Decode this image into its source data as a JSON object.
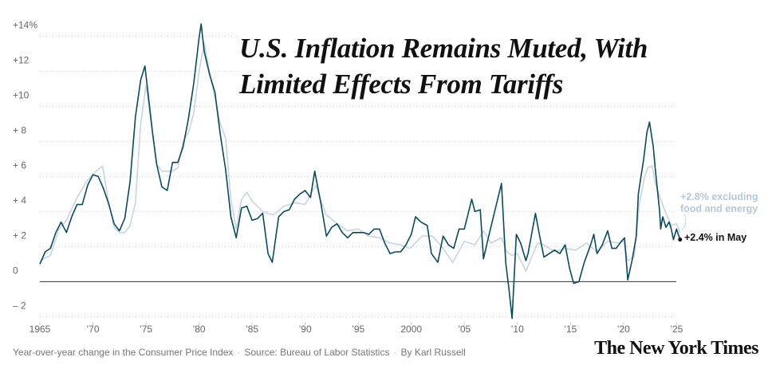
{
  "chart_data": {
    "type": "line",
    "title": "U.S. Inflation Remains Muted, With Limited Effects From Tariffs",
    "note": "Year-over-year change in the Consumer Price Index",
    "source": "Source: Bureau of Labor Statistics",
    "byline": "By Karl Russell",
    "logo": "The New York Times",
    "xlim": [
      1965,
      2025.5
    ],
    "xticks": [
      {
        "value": 1965,
        "label": "1965"
      },
      {
        "value": 1970,
        "label": "’70"
      },
      {
        "value": 1975,
        "label": "’75"
      },
      {
        "value": 1980,
        "label": "’80"
      },
      {
        "value": 1985,
        "label": "’85"
      },
      {
        "value": 1990,
        "label": "’90"
      },
      {
        "value": 1995,
        "label": "’95"
      },
      {
        "value": 2000,
        "label": "2000"
      },
      {
        "value": 2005,
        "label": "’05"
      },
      {
        "value": 2010,
        "label": "’10"
      },
      {
        "value": 2015,
        "label": "’15"
      },
      {
        "value": 2020,
        "label": "’20"
      },
      {
        "value": 2025,
        "label": "’25"
      }
    ],
    "ylim": [
      -2.3,
      14.7
    ],
    "yticks": [
      {
        "value": -2,
        "label": "– 2"
      },
      0,
      {
        "value": 2,
        "label": "+ 2"
      },
      {
        "value": 4,
        "label": "+ 4"
      },
      {
        "value": 6,
        "label": "+ 6"
      },
      {
        "value": 8,
        "label": "+ 8"
      },
      {
        "value": 10,
        "label": "+10"
      },
      {
        "value": 12,
        "label": "+12"
      },
      {
        "value": 14,
        "label": "+14%"
      }
    ],
    "grid": true,
    "series": [
      {
        "name": "+2.8% excluding food and energy",
        "color": "#c9d4df",
        "x": [
          1965,
          1966,
          1966.8,
          1967.5,
          1968.5,
          1969.5,
          1970.3,
          1970.9,
          1971.5,
          1972,
          1972.5,
          1973,
          1973.5,
          1974,
          1974.5,
          1975,
          1975.5,
          1976,
          1976.5,
          1977,
          1977.5,
          1978,
          1978.5,
          1979,
          1979.5,
          1980,
          1980.5,
          1980.9,
          1981.5,
          1982,
          1982.5,
          1983,
          1983.5,
          1984,
          1984.5,
          1985,
          1986,
          1987,
          1988,
          1989,
          1990,
          1991,
          1991.5,
          1992,
          1993,
          1994,
          1995,
          1996,
          1997,
          1998,
          1999,
          1999.9,
          2001,
          2002,
          2003,
          2003.9,
          2005,
          2006,
          2006.8,
          2007.5,
          2008.5,
          2009,
          2009.5,
          2010,
          2010.8,
          2011.9,
          2012.5,
          2013.5,
          2014.5,
          2015.5,
          2016.5,
          2017.5,
          2018.5,
          2019.5,
          2020,
          2020.4,
          2021,
          2021.5,
          2022,
          2022.3,
          2022.7,
          2023,
          2023.5,
          2024,
          2024.5,
          2025,
          2025.33
        ],
        "values": [
          1.2,
          1.5,
          3.0,
          3.5,
          4.8,
          5.8,
          6.3,
          6.6,
          4.5,
          3.1,
          2.8,
          2.8,
          3.2,
          4.5,
          9.0,
          11.2,
          9.0,
          6.7,
          6.3,
          6.3,
          6.3,
          6.5,
          8.0,
          8.5,
          9.6,
          12.0,
          13.6,
          12.2,
          10.5,
          9.0,
          8.2,
          4.7,
          3.0,
          4.7,
          5.1,
          4.6,
          4.0,
          3.8,
          4.3,
          4.5,
          4.4,
          5.5,
          4.6,
          3.8,
          3.3,
          2.9,
          3.0,
          2.6,
          2.5,
          2.2,
          2.1,
          1.9,
          2.6,
          2.6,
          1.9,
          1.1,
          2.3,
          2.1,
          2.9,
          2.2,
          2.5,
          1.7,
          1.5,
          1.6,
          0.6,
          2.2,
          2.1,
          1.7,
          1.9,
          1.8,
          2.2,
          1.7,
          2.3,
          2.2,
          2.3,
          1.2,
          1.4,
          4.5,
          6.0,
          6.5,
          6.6,
          5.6,
          4.7,
          3.9,
          3.2,
          3.3,
          2.8
        ]
      },
      {
        "name": "+2.4% in May",
        "color": "#0b4a5e",
        "x": [
          1965,
          1965.5,
          1966,
          1966.5,
          1967,
          1967.5,
          1968,
          1968.5,
          1969,
          1969.5,
          1970,
          1970.5,
          1971,
          1971.5,
          1972,
          1972.5,
          1973,
          1973.5,
          1974,
          1974.5,
          1974.9,
          1975.3,
          1975.6,
          1976,
          1976.5,
          1977,
          1977.5,
          1978,
          1978.5,
          1979,
          1979.5,
          1980,
          1980.2,
          1980.5,
          1981,
          1981.5,
          1982,
          1982.5,
          1983,
          1983.5,
          1984,
          1984.5,
          1985,
          1985.5,
          1986,
          1986.5,
          1986.9,
          1987.5,
          1988,
          1988.5,
          1989,
          1989.5,
          1990,
          1990.5,
          1990.9,
          1991.5,
          1992,
          1992.5,
          1993,
          1993.5,
          1994,
          1994.5,
          1995,
          1995.5,
          1996,
          1996.5,
          1997,
          1997.5,
          1998,
          1998.5,
          1999,
          1999.5,
          2000,
          2000.4,
          2000.9,
          2001.5,
          2001.9,
          2002.5,
          2003,
          2003.5,
          2004,
          2004.5,
          2005,
          2005.7,
          2006,
          2006.5,
          2006.8,
          2007.3,
          2007.9,
          2008.5,
          2008.9,
          2009.2,
          2009.5,
          2009.9,
          2010.3,
          2010.8,
          2011,
          2011.7,
          2012,
          2012.5,
          2013,
          2013.5,
          2014,
          2014.5,
          2014.9,
          2015.3,
          2015.8,
          2016.3,
          2016.9,
          2017.2,
          2017.5,
          2018,
          2018.5,
          2018.9,
          2019.3,
          2019.8,
          2020.1,
          2020.4,
          2020.8,
          2021.2,
          2021.4,
          2021.9,
          2022.2,
          2022.45,
          2022.8,
          2023,
          2023.4,
          2023.5,
          2023.7,
          2024,
          2024.3,
          2024.5,
          2024.7,
          2025,
          2025.33
        ],
        "values": [
          1.0,
          1.7,
          1.9,
          2.8,
          3.4,
          2.8,
          3.7,
          4.4,
          4.4,
          5.5,
          6.1,
          6.0,
          5.3,
          4.4,
          3.3,
          2.9,
          3.6,
          5.7,
          9.4,
          11.5,
          12.3,
          10.2,
          8.6,
          6.7,
          5.4,
          5.2,
          6.8,
          6.8,
          7.7,
          9.3,
          11.3,
          13.9,
          14.7,
          13.1,
          11.8,
          10.8,
          8.4,
          6.4,
          3.7,
          2.5,
          4.2,
          4.3,
          3.5,
          3.6,
          3.9,
          1.6,
          1.1,
          3.7,
          4.0,
          4.1,
          4.7,
          5.0,
          5.2,
          4.8,
          6.3,
          4.4,
          2.6,
          3.1,
          3.3,
          2.8,
          2.5,
          2.8,
          2.8,
          2.8,
          2.7,
          3.0,
          3.0,
          2.2,
          1.6,
          1.7,
          1.7,
          2.1,
          2.7,
          3.7,
          3.4,
          3.2,
          1.6,
          1.1,
          2.6,
          2.1,
          1.9,
          3.0,
          3.0,
          4.7,
          4.0,
          4.1,
          1.3,
          2.6,
          4.1,
          5.6,
          1.1,
          -0.4,
          -2.1,
          2.7,
          2.2,
          1.2,
          1.6,
          3.9,
          2.9,
          1.4,
          1.6,
          1.8,
          1.6,
          2.1,
          0.8,
          -0.1,
          0.0,
          1.1,
          2.1,
          2.7,
          1.6,
          2.1,
          2.9,
          1.9,
          1.9,
          2.3,
          2.5,
          0.1,
          1.2,
          2.6,
          5.0,
          7.0,
          8.5,
          9.1,
          7.7,
          6.4,
          4.0,
          3.0,
          3.7,
          3.1,
          3.4,
          3.0,
          2.4,
          3.0,
          2.4
        ]
      }
    ]
  }
}
